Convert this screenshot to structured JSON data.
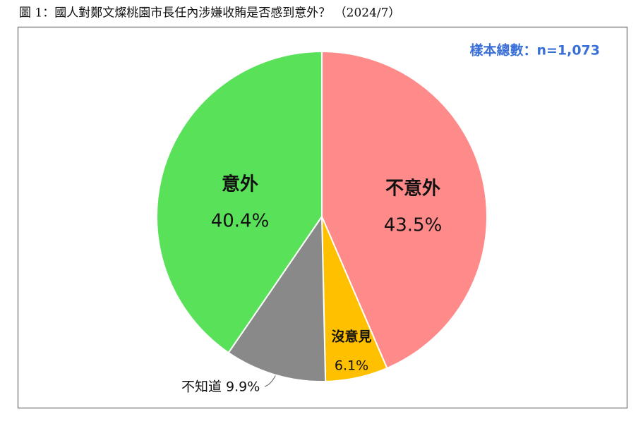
{
  "chart_data": {
    "type": "pie",
    "title": "圖 1：國人對鄭文燦桃園市長任內涉嫌收賄是否感到意外？ （2024/7）",
    "annotation": "樣本總數：n=1,073",
    "categories": [
      "不意外",
      "沒意見",
      "不知道",
      "意外"
    ],
    "values": [
      43.5,
      6.1,
      9.9,
      40.4
    ],
    "value_labels": [
      "43.5%",
      "6.1%",
      "9.9%",
      "40.4%"
    ],
    "colors": [
      "#ff8a8a",
      "#ffc000",
      "#898989",
      "#5ae15a"
    ]
  }
}
